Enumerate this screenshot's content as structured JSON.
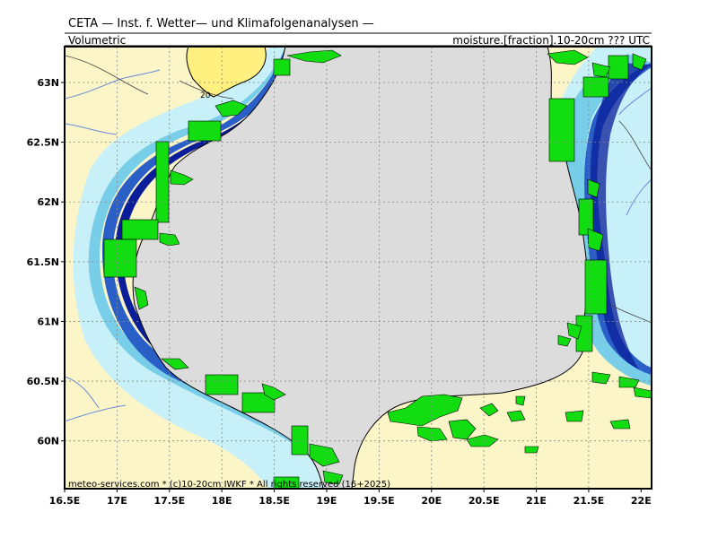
{
  "header": {
    "title": "CETA — Inst. f. Wetter— und Klimafolgenanalysen —",
    "left_label": "Volumetric",
    "right_label": "moisture.[fraction].10-20cm ??? UTC"
  },
  "map": {
    "lon_range": [
      16.5,
      22.1
    ],
    "lat_range": [
      59.6,
      63.3
    ],
    "lon_ticks": [
      "16.5E",
      "17E",
      "17.5E",
      "18E",
      "18.5E",
      "19E",
      "19.5E",
      "20E",
      "20.5E",
      "21E",
      "21.5E",
      "22E"
    ],
    "lat_ticks": [
      "60N",
      "60.5N",
      "61N",
      "61.5N",
      "62N",
      "62.5N",
      "63N"
    ],
    "contour_label": "20",
    "footer_credit": "meteo-services.com * (c)10-20cm IWKF * All rights reserved (16+2025)",
    "colors": {
      "sea": "#dcdcdc",
      "land": "#fbf5c8",
      "highlight_land": "#fff080",
      "green_cells": "#11dd11",
      "contour_light": "#c8f0f8",
      "contour_mid": "#78cde8",
      "contour_dark": "#2a5fc8",
      "contour_deep": "#0a1e9a",
      "grid": "#888888",
      "river": "#6a8ad8"
    }
  }
}
